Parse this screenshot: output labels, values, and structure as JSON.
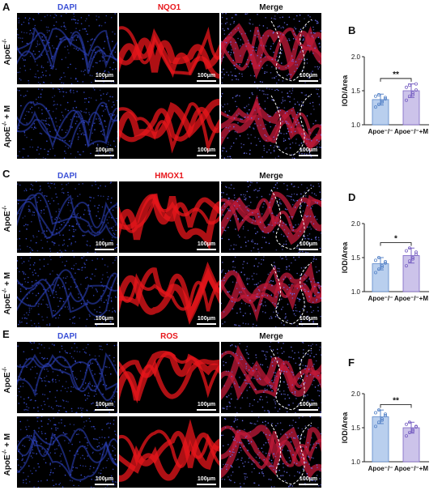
{
  "scale_label": "100μm",
  "sections": [
    {
      "letter": "A",
      "columns": [
        "DAPI",
        "NQO1",
        "Merge"
      ],
      "rows": [
        {
          "label_main": "ApoE",
          "label_sup": "-/-",
          "label_tail": ""
        },
        {
          "label_main": "ApoE",
          "label_sup": "-/-",
          "label_tail": " + M"
        }
      ]
    },
    {
      "letter": "C",
      "columns": [
        "DAPI",
        "HMOX1",
        "Merge"
      ],
      "rows": [
        {
          "label_main": "ApoE",
          "label_sup": "-/-",
          "label_tail": ""
        },
        {
          "label_main": "ApoE",
          "label_sup": "-/-",
          "label_tail": " + M"
        }
      ]
    },
    {
      "letter": "E",
      "columns": [
        "DAPI",
        "ROS",
        "Merge"
      ],
      "rows": [
        {
          "label_main": "ApoE",
          "label_sup": "-/-",
          "label_tail": ""
        },
        {
          "label_main": "ApoE",
          "label_sup": "-/-",
          "label_tail": " + M"
        }
      ]
    }
  ],
  "colors": {
    "dapi": "#3a4fd6",
    "marker": "#e8161b",
    "bar_control": "#b9cfee",
    "bar_treated": "#ccc3ea"
  },
  "chart_data": [
    {
      "letter": "B",
      "type": "bar",
      "ylabel": "IOD/Area",
      "ylim": [
        1.0,
        2.0
      ],
      "yticks": [
        "1.0",
        "1.5",
        "2.0"
      ],
      "categories": [
        "Apoe⁻/⁻",
        "Apoe⁻/⁻+M"
      ],
      "values": [
        1.37,
        1.5
      ],
      "errors": [
        0.08,
        0.1
      ],
      "points": [
        [
          1.26,
          1.3,
          1.35,
          1.38,
          1.42,
          1.44,
          1.33,
          1.4
        ],
        [
          1.36,
          1.42,
          1.47,
          1.51,
          1.55,
          1.58,
          1.44,
          1.6
        ]
      ],
      "significance": "**"
    },
    {
      "letter": "D",
      "type": "bar",
      "ylabel": "IOD/Area",
      "ylim": [
        1.0,
        2.0
      ],
      "yticks": [
        "1.0",
        "1.5",
        "2.0"
      ],
      "categories": [
        "Apoe⁻/⁻",
        "Apoe⁻/⁻+M"
      ],
      "values": [
        1.41,
        1.53
      ],
      "errors": [
        0.09,
        0.11
      ],
      "points": [
        [
          1.28,
          1.33,
          1.38,
          1.42,
          1.46,
          1.5,
          1.36,
          1.44
        ],
        [
          1.38,
          1.45,
          1.5,
          1.55,
          1.6,
          1.64,
          1.48,
          1.58
        ]
      ],
      "significance": "*"
    },
    {
      "letter": "F",
      "type": "bar",
      "ylabel": "IOD/Area",
      "ylim": [
        1.0,
        2.0
      ],
      "yticks": [
        "1.0",
        "1.5",
        "2.0"
      ],
      "categories": [
        "Apoe⁻/⁻",
        "Apoe⁻/⁻+M"
      ],
      "values": [
        1.66,
        1.5
      ],
      "errors": [
        0.1,
        0.08
      ],
      "points": [
        [
          1.52,
          1.58,
          1.63,
          1.68,
          1.72,
          1.76,
          1.61,
          1.7
        ],
        [
          1.38,
          1.43,
          1.47,
          1.51,
          1.55,
          1.58,
          1.45,
          1.52
        ]
      ],
      "significance": "**"
    }
  ]
}
